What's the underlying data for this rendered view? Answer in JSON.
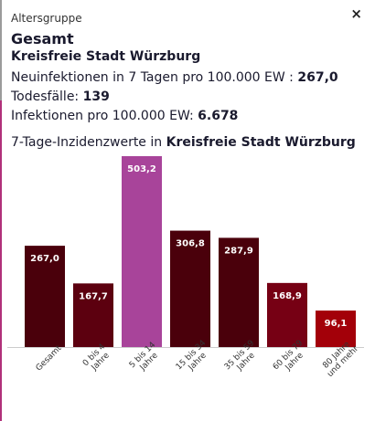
{
  "header": {
    "age_group_label": "Altersgruppe",
    "age_group_value": "Gesamt",
    "region_name": "Kreisfreie Stadt Würzburg",
    "close_symbol": "×",
    "close_icon": "close-icon"
  },
  "stats": {
    "incidence_label": "Neuinfektionen in 7 Tagen pro 100.000 EW : ",
    "incidence_value": "267,0",
    "deaths_label": "Todesfälle: ",
    "deaths_value": "139",
    "infections_label": "Infektionen pro 100.000 EW: ",
    "infections_value": "6.678"
  },
  "chart_title": {
    "prefix": "7-Tage-Inzidenzwerte in ",
    "region": "Kreisfreie Stadt Würzburg"
  },
  "chart_data": {
    "type": "bar",
    "title": "7-Tage-Inzidenzwerte in Kreisfreie Stadt Würzburg",
    "categories": [
      [
        "Gesamt"
      ],
      [
        "0 bis 4",
        "Jahre"
      ],
      [
        "5 bis 14",
        "Jahre"
      ],
      [
        "15 bis 34",
        "Jahre"
      ],
      [
        "35 bis 59",
        "Jahre"
      ],
      [
        "60 bis 79",
        "Jahre"
      ],
      [
        "80 Jahre",
        "und mehr"
      ]
    ],
    "values": [
      267.0,
      167.7,
      503.2,
      306.8,
      287.9,
      168.9,
      96.1
    ],
    "value_labels": [
      "267,0",
      "167,7",
      "503,2",
      "306,8",
      "287,9",
      "168,9",
      "96,1"
    ],
    "colors": [
      "#4a000b",
      "#5c000f",
      "#a8449a",
      "#4a000b",
      "#4a000b",
      "#760014",
      "#a30009"
    ],
    "ylim": [
      0,
      503.2
    ],
    "grid": false
  }
}
